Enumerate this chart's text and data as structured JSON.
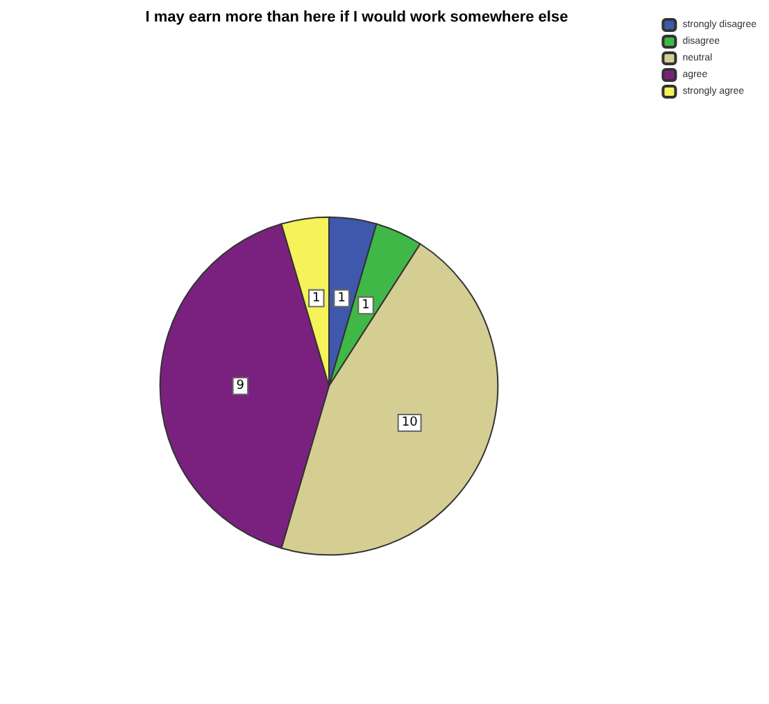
{
  "chart_data": {
    "type": "pie",
    "title": "I may earn more than here if I would work somewhere else",
    "categories": [
      "strongly disagree",
      "disagree",
      "neutral",
      "agree",
      "strongly agree"
    ],
    "values": [
      1,
      1,
      10,
      9,
      1
    ],
    "colors": [
      "#3e58ac",
      "#3fb848",
      "#d4ce93",
      "#7a2180",
      "#f5f25a"
    ],
    "data_labels": true,
    "legend": "top right"
  }
}
